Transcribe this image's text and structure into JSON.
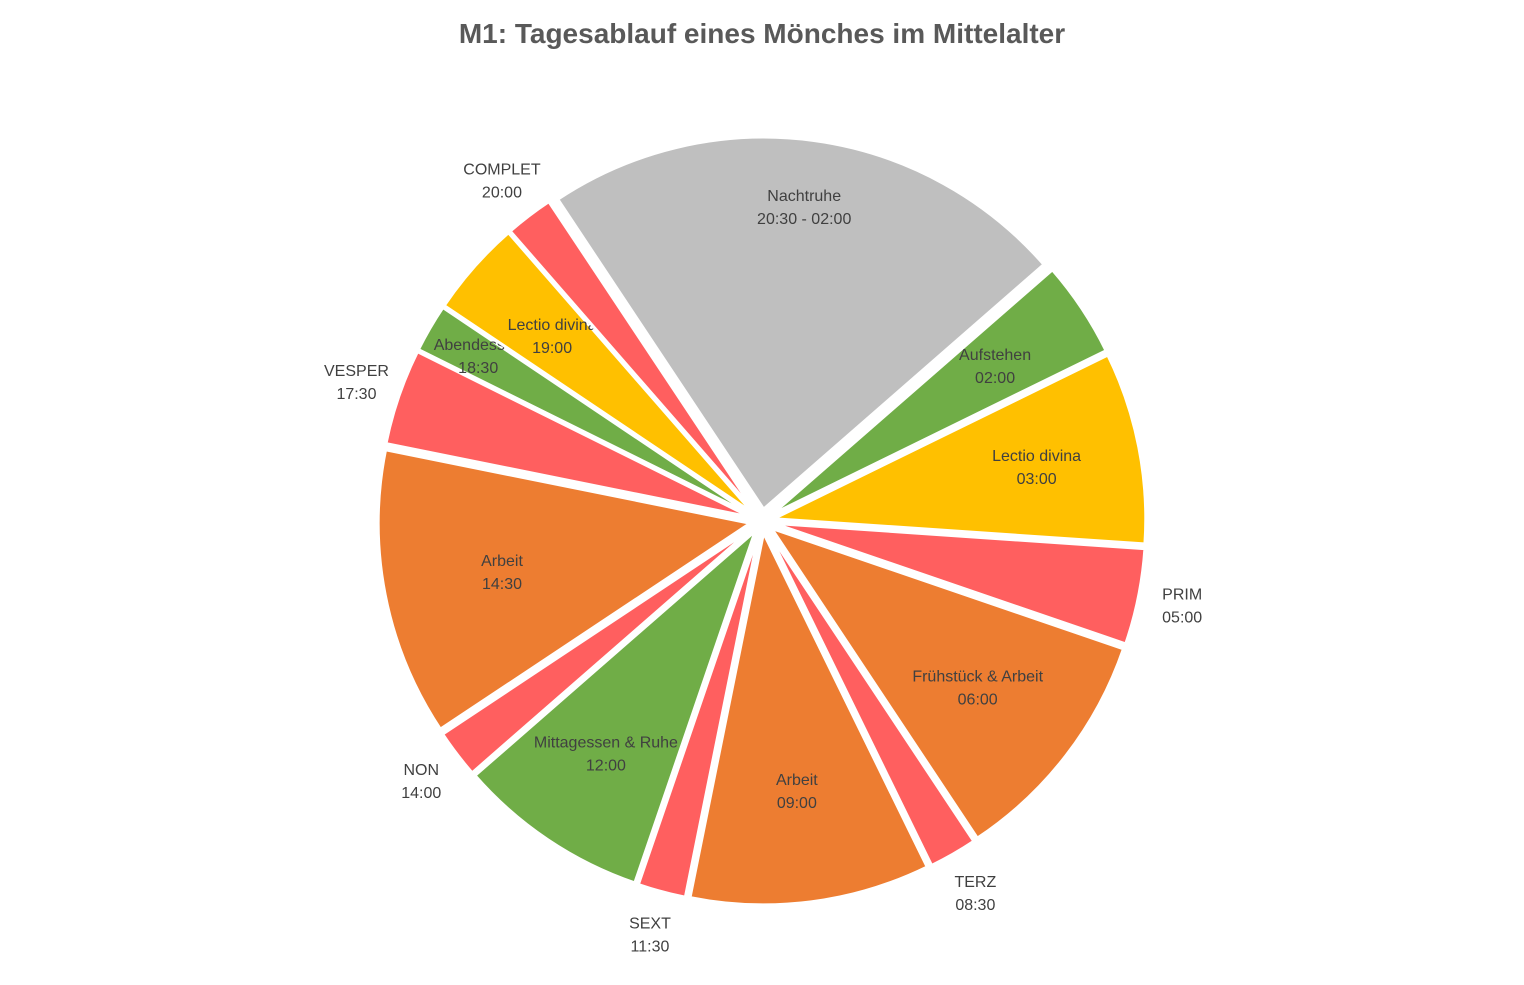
{
  "chart_data": {
    "type": "pie",
    "title": "M1: Tagesablauf eines Mönches im Mittelalter",
    "unit": "hours",
    "slices": [
      {
        "name": "Aufstehen",
        "time": "02:00",
        "value": 1.0,
        "color": "#70AD47"
      },
      {
        "name": "Lectio divina",
        "time": "03:00",
        "value": 2.0,
        "color": "#FFC000"
      },
      {
        "name": "PRIM",
        "time": "05:00",
        "value": 1.0,
        "color": "#FF5F5F"
      },
      {
        "name": "Frühstück & Arbeit",
        "time": "06:00",
        "value": 2.5,
        "color": "#ED7D31"
      },
      {
        "name": "TERZ",
        "time": "08:30",
        "value": 0.5,
        "color": "#FF5F5F"
      },
      {
        "name": "Arbeit",
        "time": "09:00",
        "value": 2.5,
        "color": "#ED7D31"
      },
      {
        "name": "SEXT",
        "time": "11:30",
        "value": 0.5,
        "color": "#FF5F5F"
      },
      {
        "name": "Mittagessen & Ruhe",
        "time": "12:00",
        "value": 2.0,
        "color": "#70AD47"
      },
      {
        "name": "NON",
        "time": "14:00",
        "value": 0.5,
        "color": "#FF5F5F"
      },
      {
        "name": "Arbeit",
        "time": "14:30",
        "value": 3.0,
        "color": "#ED7D31"
      },
      {
        "name": "VESPER",
        "time": "17:30",
        "value": 1.0,
        "color": "#FF5F5F"
      },
      {
        "name": "Abendessen",
        "time": "18:30",
        "value": 0.5,
        "color": "#70AD47"
      },
      {
        "name": "Lectio divina",
        "time": "19:00",
        "value": 1.0,
        "color": "#FFC000"
      },
      {
        "name": "COMPLET",
        "time": "20:00",
        "value": 0.5,
        "color": "#FF5F5F"
      },
      {
        "name": "Nachtruhe",
        "time": "20:30 - 02:00",
        "value": 5.5,
        "color": "#BFBFBF"
      }
    ]
  }
}
